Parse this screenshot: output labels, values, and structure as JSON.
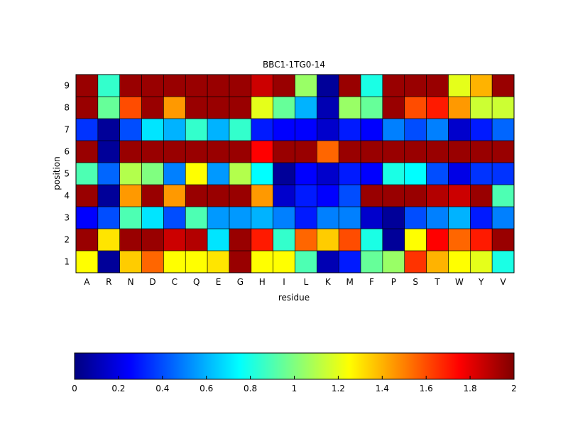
{
  "chart_data": {
    "type": "heatmap",
    "title": "BBC1-1TG0-14",
    "xlabel": "residue",
    "ylabel": "position",
    "x_categories": [
      "A",
      "R",
      "N",
      "D",
      "C",
      "Q",
      "E",
      "G",
      "H",
      "I",
      "L",
      "K",
      "M",
      "F",
      "P",
      "S",
      "T",
      "W",
      "Y",
      "V"
    ],
    "y_categories": [
      "1",
      "2",
      "3",
      "4",
      "5",
      "6",
      "7",
      "8",
      "9"
    ],
    "values": [
      [
        1.25,
        0.05,
        1.35,
        1.55,
        1.25,
        1.25,
        1.3,
        1.95,
        1.25,
        1.25,
        0.9,
        0.1,
        0.3,
        0.95,
        1.05,
        1.65,
        1.4,
        1.25,
        1.2,
        0.8
      ],
      [
        1.95,
        1.3,
        1.95,
        1.95,
        1.85,
        1.9,
        0.7,
        1.95,
        1.7,
        0.85,
        1.55,
        1.35,
        1.6,
        0.8,
        0.05,
        1.25,
        1.75,
        1.55,
        1.7,
        1.95
      ],
      [
        0.25,
        0.4,
        0.9,
        0.7,
        0.4,
        0.9,
        0.55,
        0.55,
        0.6,
        0.5,
        0.3,
        0.5,
        0.5,
        0.15,
        0.05,
        0.4,
        0.5,
        0.6,
        0.3,
        0.5
      ],
      [
        1.95,
        0.05,
        1.45,
        1.95,
        1.45,
        1.95,
        1.95,
        1.95,
        1.45,
        0.15,
        0.3,
        0.25,
        0.4,
        1.95,
        1.95,
        1.95,
        1.9,
        1.85,
        1.95,
        0.9
      ],
      [
        0.9,
        0.45,
        1.1,
        1.0,
        0.5,
        1.25,
        0.55,
        1.1,
        0.75,
        0.05,
        0.25,
        0.15,
        0.3,
        0.25,
        0.8,
        0.75,
        0.4,
        0.2,
        0.35,
        0.35
      ],
      [
        1.95,
        0.05,
        1.95,
        1.95,
        1.95,
        1.95,
        1.95,
        1.95,
        1.75,
        1.95,
        1.95,
        1.55,
        1.95,
        1.95,
        1.95,
        1.95,
        1.95,
        1.95,
        1.95,
        1.95
      ],
      [
        0.35,
        0.05,
        0.4,
        0.7,
        0.6,
        0.85,
        0.6,
        0.85,
        0.3,
        0.25,
        0.25,
        0.15,
        0.3,
        0.25,
        0.5,
        0.4,
        0.5,
        0.15,
        0.3,
        0.45
      ],
      [
        1.95,
        0.95,
        1.6,
        1.95,
        1.45,
        1.95,
        1.95,
        1.95,
        1.2,
        0.95,
        0.6,
        0.1,
        1.05,
        0.95,
        1.95,
        1.6,
        1.7,
        1.45,
        1.15,
        1.15
      ],
      [
        1.95,
        0.85,
        1.95,
        1.95,
        1.95,
        1.95,
        1.95,
        1.95,
        1.85,
        1.95,
        1.05,
        0.05,
        1.95,
        0.8,
        1.95,
        1.95,
        1.95,
        1.2,
        1.4,
        1.95
      ]
    ],
    "colorbar": {
      "colormap": "jet",
      "range": [
        0,
        2
      ],
      "ticks": [
        "0",
        "0.2",
        "0.4",
        "0.6",
        "0.8",
        "1",
        "1.2",
        "1.4",
        "1.6",
        "1.8",
        "2"
      ],
      "placement": "bottom"
    }
  }
}
